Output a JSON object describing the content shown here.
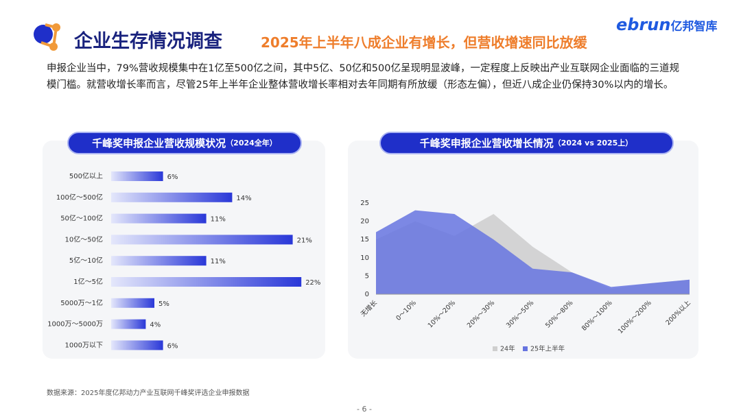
{
  "header": {
    "title": "企业生存情况调查",
    "subtitle": "2025年上半年八成企业有增长，但营收增速同比放缓",
    "logo_brand": "ebrun",
    "logo_name": "亿邦智库"
  },
  "body": {
    "text": "申报企业当中，79%营收规模集中在1亿至500亿之间，其中5亿、50亿和500亿呈现明显波峰，一定程度上反映出产业互联网企业面临的三道规模门槛。就营收增长率而言，尽管25年上半年企业整体营收增长率相对去年同期有所放缓（形态左偏），但近八成企业仍保持30%以内的增长。"
  },
  "chart_data": [
    {
      "type": "bar",
      "orientation": "horizontal",
      "title": "千峰奖申报企业营收规模状况",
      "subtitle": "（2024全年）",
      "categories": [
        "500亿以上",
        "100亿～500亿",
        "50亿～100亿",
        "10亿～50亿",
        "5亿～10亿",
        "1亿～5亿",
        "5000万～1亿",
        "1000万～5000万",
        "1000万以下"
      ],
      "values": [
        6,
        14,
        11,
        21,
        11,
        22,
        5,
        4,
        6
      ],
      "value_labels": [
        "6%",
        "14%",
        "11%",
        "21%",
        "11%",
        "22%",
        "5%",
        "4%",
        "6%"
      ],
      "color": "#2a38d8"
    },
    {
      "type": "area",
      "title": "千峰奖申报企业营收增长情况",
      "subtitle": "（2024 vs 2025上）",
      "categories": [
        "无增长",
        "0～10%",
        "10%～20%",
        "20%～30%",
        "30%～50%",
        "50%～80%",
        "80%～100%",
        "100%～200%",
        "200%以上"
      ],
      "series": [
        {
          "name": "24年",
          "color": "#cfcfcf",
          "values": [
            15,
            20,
            16,
            22,
            13,
            6,
            1.5,
            3,
            4
          ]
        },
        {
          "name": "25年上半年",
          "color": "#6674e0",
          "values": [
            17,
            23,
            22,
            15,
            7,
            6,
            2,
            3,
            4
          ]
        }
      ],
      "ylim": [
        0,
        25
      ],
      "yticks": [
        0,
        5,
        10,
        15,
        20,
        25
      ],
      "grid": false,
      "legend": "bottom"
    }
  ],
  "footer": {
    "source": "数据来源：2025年度亿邦动力产业互联网千峰奖评选企业申报数据",
    "page": "- 6 -"
  }
}
